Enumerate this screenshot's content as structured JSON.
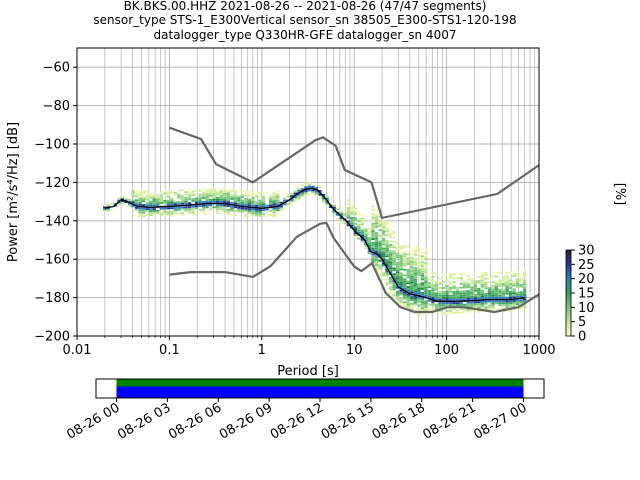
{
  "chart_data": {
    "type": "heatmap",
    "title_lines": [
      "BK.BKS.00.HHZ   2021-08-26 -- 2021-08-26  (47/47 segments)",
      "sensor_type STS-1_E300Vertical sensor_sn 38505_E300-STS1-120-198",
      "datalogger_type Q330HR-GFE datalogger_sn 4007"
    ],
    "xlabel": "Period [s]",
    "ylabel": "Power [m²/s⁴/Hz] [dB]",
    "xscale": "log",
    "xlim": [
      0.01,
      1000
    ],
    "ylim": [
      -200,
      -50
    ],
    "x_ticks": [
      0.01,
      0.1,
      1,
      10,
      100,
      1000
    ],
    "x_tick_labels": [
      "0.01",
      "0.1",
      "1",
      "10",
      "100",
      "1000"
    ],
    "y_ticks": [
      -200,
      -180,
      -160,
      -140,
      -120,
      -100,
      -80,
      -60
    ],
    "y_tick_labels": [
      "−200",
      "−180",
      "−160",
      "−140",
      "−120",
      "−100",
      "−80",
      "−60"
    ],
    "grid": true,
    "noise_models": [
      {
        "id": "high-noise-model",
        "points": [
          [
            0.1,
            -91.5
          ],
          [
            0.22,
            -97.4
          ],
          [
            0.32,
            -110.5
          ],
          [
            0.8,
            -120
          ],
          [
            3.8,
            -98
          ],
          [
            4.6,
            -96.5
          ],
          [
            6.3,
            -101
          ],
          [
            7.9,
            -113.5
          ],
          [
            15.4,
            -120
          ],
          [
            20,
            -138.5
          ],
          [
            354.8,
            -126
          ],
          [
            1000,
            -111
          ]
        ]
      },
      {
        "id": "low-noise-model",
        "points": [
          [
            0.1,
            -168
          ],
          [
            0.17,
            -166.7
          ],
          [
            0.4,
            -166.7
          ],
          [
            0.8,
            -169.2
          ],
          [
            1.24,
            -163.7
          ],
          [
            2.4,
            -148.3
          ],
          [
            4.3,
            -141.5
          ],
          [
            5,
            -141.1
          ],
          [
            6,
            -149
          ],
          [
            10,
            -163.8
          ],
          [
            12,
            -166.2
          ],
          [
            15.6,
            -162.1
          ],
          [
            21.9,
            -177.5
          ],
          [
            31.6,
            -185
          ],
          [
            45,
            -187.5
          ],
          [
            70,
            -187.5
          ],
          [
            101,
            -185
          ],
          [
            154,
            -185
          ],
          [
            328,
            -187.5
          ],
          [
            600,
            -185
          ],
          [
            1000,
            -178.3
          ]
        ]
      }
    ],
    "mean_curve": [
      [
        0.02,
        -133.5
      ],
      [
        0.025,
        -132.5
      ],
      [
        0.03,
        -129
      ],
      [
        0.035,
        -130
      ],
      [
        0.045,
        -132.5
      ],
      [
        0.06,
        -133
      ],
      [
        0.1,
        -132.5
      ],
      [
        0.15,
        -132
      ],
      [
        0.25,
        -131
      ],
      [
        0.4,
        -131
      ],
      [
        0.6,
        -132.5
      ],
      [
        1,
        -133.5
      ],
      [
        1.5,
        -132.5
      ],
      [
        2,
        -129
      ],
      [
        2.5,
        -125.5
      ],
      [
        3,
        -123.5
      ],
      [
        3.5,
        -123
      ],
      [
        4,
        -124
      ],
      [
        5,
        -129
      ],
      [
        6,
        -134
      ],
      [
        8,
        -139.5
      ],
      [
        10,
        -145
      ],
      [
        13,
        -150
      ],
      [
        15,
        -156
      ],
      [
        18,
        -157.5
      ],
      [
        20,
        -160
      ],
      [
        25,
        -168
      ],
      [
        30,
        -174.5
      ],
      [
        40,
        -178
      ],
      [
        60,
        -180
      ],
      [
        80,
        -182
      ],
      [
        120,
        -182
      ],
      [
        200,
        -181.5
      ],
      [
        300,
        -181
      ],
      [
        500,
        -181
      ],
      [
        700,
        -180
      ]
    ],
    "colorbar": {
      "label": "[%]",
      "range": [
        0,
        30
      ],
      "ticks": [
        0,
        5,
        10,
        15,
        20,
        25,
        30
      ],
      "tick_labels": [
        "0",
        "5",
        "10",
        "15",
        "20",
        "25",
        "30"
      ],
      "colors": [
        "#ffffcc",
        "#c2e699",
        "#78c679",
        "#31a354",
        "#2c7fb8",
        "#253494",
        "#2d1e3e"
      ]
    },
    "timeline": {
      "x_ticks": [
        "08-26 00",
        "08-26 03",
        "08-26 06",
        "08-26 09",
        "08-26 12",
        "08-26 15",
        "08-26 18",
        "08-26 21",
        "08-27 00"
      ],
      "data_color": "#0000ff",
      "coverage_color": "#008000"
    },
    "colors": {
      "noise_model": "#666666",
      "mean": "#000000",
      "grid": "#b0b0b0"
    }
  }
}
